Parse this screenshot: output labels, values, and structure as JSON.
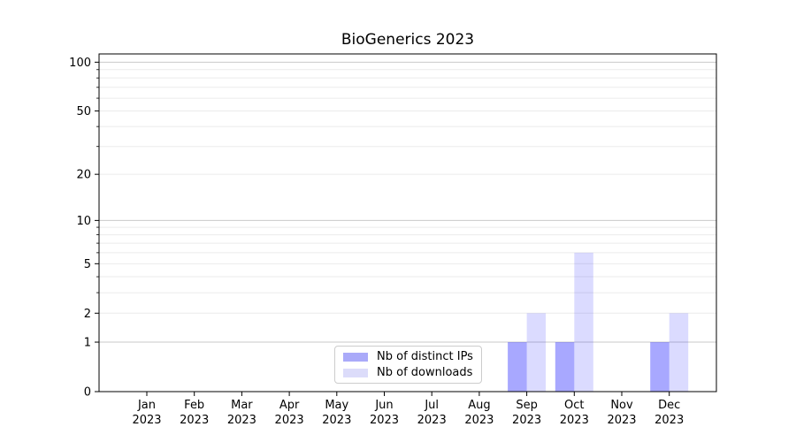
{
  "chart_data": {
    "type": "bar",
    "title": "BioGenerics 2023",
    "categories": [
      "Jan 2023",
      "Feb 2023",
      "Mar 2023",
      "Apr 2023",
      "May 2023",
      "Jun 2023",
      "Jul 2023",
      "Aug 2023",
      "Sep 2023",
      "Oct 2023",
      "Nov 2023",
      "Dec 2023"
    ],
    "month_labels": [
      "Jan",
      "Feb",
      "Mar",
      "Apr",
      "May",
      "Jun",
      "Jul",
      "Aug",
      "Sep",
      "Oct",
      "Nov",
      "Dec"
    ],
    "year_label": "2023",
    "series": [
      {
        "name": "Nb of distinct IPs",
        "values": [
          0,
          0,
          0,
          0,
          0,
          0,
          0,
          0,
          1,
          1,
          0,
          1
        ],
        "fill": "#0000ff",
        "fill_opacity": 0.34,
        "swatch": "#aaaaf9"
      },
      {
        "name": "Nb of downloads",
        "values": [
          0,
          0,
          0,
          0,
          0,
          0,
          0,
          0,
          2,
          6,
          0,
          2
        ],
        "fill": "#0000ff",
        "fill_opacity": 0.14,
        "swatch": "#dcdcfa"
      }
    ],
    "y_axis": {
      "scale": "log1p",
      "ticks": [
        0,
        1,
        2,
        5,
        10,
        20,
        50,
        100
      ],
      "major_gridlines": [
        1,
        10,
        100
      ],
      "minor_gridlines": [
        2,
        3,
        4,
        5,
        6,
        7,
        8,
        9,
        20,
        30,
        40,
        50,
        60,
        70,
        80,
        90
      ],
      "ylim": [
        0,
        112
      ]
    },
    "xlabel": "",
    "ylabel": "",
    "grid": {
      "enabled": true,
      "major_color": "#c9c9c9",
      "minor_color": "#ebebeb"
    },
    "legend": {
      "position": "lower-center",
      "border_color": "#cccccc",
      "background": "#ffffff"
    },
    "axis_color": "#000000"
  }
}
